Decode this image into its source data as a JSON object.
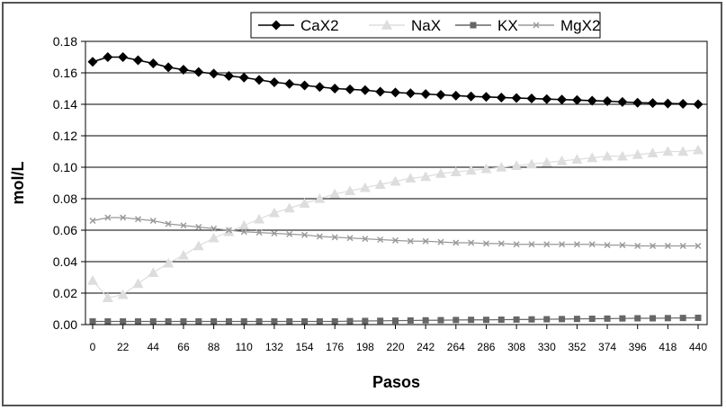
{
  "chart_data": {
    "type": "line",
    "title": "",
    "xlabel": "Pasos",
    "ylabel": "mol/L",
    "ylim": [
      0,
      0.18
    ],
    "yticks": [
      "0.00",
      "0.02",
      "0.04",
      "0.06",
      "0.08",
      "0.10",
      "0.12",
      "0.14",
      "0.16",
      "0.18"
    ],
    "xlim": [
      0,
      440
    ],
    "xticks": [
      "0",
      "22",
      "44",
      "66",
      "88",
      "110",
      "132",
      "154",
      "176",
      "198",
      "220",
      "242",
      "264",
      "286",
      "308",
      "330",
      "352",
      "374",
      "396",
      "418",
      "440"
    ],
    "grid": "horizontal",
    "legend_position": "top",
    "x": [
      0,
      11,
      22,
      33,
      44,
      55,
      66,
      77,
      88,
      99,
      110,
      121,
      132,
      143,
      154,
      165,
      176,
      187,
      198,
      209,
      220,
      231,
      242,
      253,
      264,
      275,
      286,
      297,
      308,
      319,
      330,
      341,
      352,
      363,
      374,
      385,
      396,
      407,
      418,
      429,
      440
    ],
    "series": [
      {
        "name": "CaX2",
        "color": "#000000",
        "marker": "diamond",
        "values": [
          0.167,
          0.17,
          0.17,
          0.168,
          0.166,
          0.1635,
          0.162,
          0.1605,
          0.1595,
          0.158,
          0.157,
          0.1555,
          0.154,
          0.153,
          0.152,
          0.151,
          0.15,
          0.1495,
          0.149,
          0.148,
          0.1475,
          0.147,
          0.1465,
          0.146,
          0.1455,
          0.145,
          0.1447,
          0.1443,
          0.144,
          0.1437,
          0.1433,
          0.143,
          0.1427,
          0.1423,
          0.142,
          0.1415,
          0.141,
          0.1408,
          0.1405,
          0.1403,
          0.14
        ]
      },
      {
        "name": "NaX",
        "color": "#dddddd",
        "marker": "triangle",
        "values": [
          0.028,
          0.017,
          0.019,
          0.026,
          0.033,
          0.039,
          0.044,
          0.05,
          0.055,
          0.059,
          0.063,
          0.067,
          0.071,
          0.074,
          0.077,
          0.08,
          0.083,
          0.085,
          0.087,
          0.089,
          0.091,
          0.093,
          0.094,
          0.096,
          0.097,
          0.098,
          0.099,
          0.1,
          0.101,
          0.102,
          0.103,
          0.104,
          0.105,
          0.106,
          0.107,
          0.107,
          0.108,
          0.109,
          0.11,
          0.11,
          0.111
        ]
      },
      {
        "name": "KX",
        "color": "#666666",
        "marker": "square",
        "values": [
          0.002,
          0.002,
          0.002,
          0.002,
          0.002,
          0.002,
          0.002,
          0.002,
          0.002,
          0.002,
          0.002,
          0.002,
          0.002,
          0.002,
          0.002,
          0.002,
          0.002,
          0.0022,
          0.0023,
          0.0024,
          0.0025,
          0.0026,
          0.0027,
          0.0028,
          0.0029,
          0.003,
          0.003,
          0.0031,
          0.0032,
          0.0033,
          0.0034,
          0.0035,
          0.0036,
          0.0037,
          0.0038,
          0.0039,
          0.004,
          0.004,
          0.0041,
          0.0042,
          0.0043
        ]
      },
      {
        "name": "MgX2",
        "color": "#999999",
        "marker": "x",
        "values": [
          0.066,
          0.068,
          0.068,
          0.067,
          0.066,
          0.064,
          0.063,
          0.062,
          0.061,
          0.06,
          0.059,
          0.0585,
          0.058,
          0.0575,
          0.057,
          0.056,
          0.0555,
          0.055,
          0.0545,
          0.054,
          0.0535,
          0.053,
          0.053,
          0.0525,
          0.052,
          0.052,
          0.0515,
          0.0515,
          0.051,
          0.051,
          0.051,
          0.051,
          0.051,
          0.051,
          0.0505,
          0.0505,
          0.05,
          0.05,
          0.05,
          0.05,
          0.05
        ]
      }
    ]
  }
}
